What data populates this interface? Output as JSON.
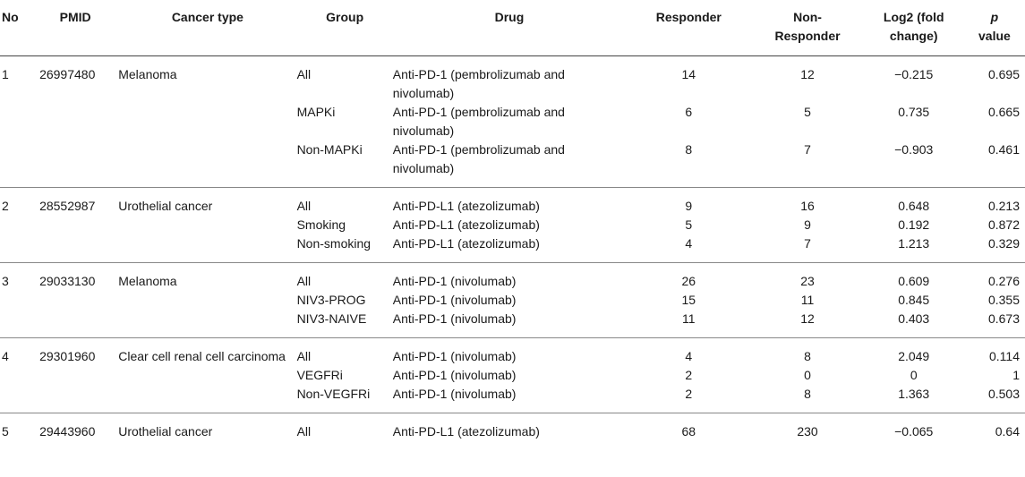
{
  "headers": {
    "no": "No",
    "pmid": "PMID",
    "cancer_type": "Cancer type",
    "group": "Group",
    "drug": "Drug",
    "responder": "Responder",
    "non_responder_1": "Non-",
    "non_responder_2": "Responder",
    "log2_1": "Log2 (fold",
    "log2_2": "change)",
    "p_1": "p",
    "p_2": "value"
  },
  "studies": [
    {
      "no": "1",
      "pmid": "26997480",
      "cancer_type": "Melanoma",
      "rows": [
        {
          "group": "All",
          "drug": "Anti-PD-1 (pembrolizumab and nivolumab)",
          "responder": "14",
          "non_responder": "12",
          "log2": "−0.215",
          "p": "0.695"
        },
        {
          "group": "MAPKi",
          "drug": "Anti-PD-1 (pembrolizumab and nivolumab)",
          "responder": "6",
          "non_responder": "5",
          "log2": "0.735",
          "p": "0.665"
        },
        {
          "group": "Non-MAPKi",
          "drug": "Anti-PD-1 (pembrolizumab and nivolumab)",
          "responder": "8",
          "non_responder": "7",
          "log2": "−0.903",
          "p": "0.461"
        }
      ]
    },
    {
      "no": "2",
      "pmid": "28552987",
      "cancer_type": "Urothelial cancer",
      "rows": [
        {
          "group": "All",
          "drug": "Anti-PD-L1 (atezolizumab)",
          "responder": "9",
          "non_responder": "16",
          "log2": "0.648",
          "p": "0.213"
        },
        {
          "group": "Smoking",
          "drug": "Anti-PD-L1 (atezolizumab)",
          "responder": "5",
          "non_responder": "9",
          "log2": "0.192",
          "p": "0.872"
        },
        {
          "group": "Non-smoking",
          "drug": "Anti-PD-L1 (atezolizumab)",
          "responder": "4",
          "non_responder": "7",
          "log2": "1.213",
          "p": "0.329"
        }
      ]
    },
    {
      "no": "3",
      "pmid": "29033130",
      "cancer_type": "Melanoma",
      "rows": [
        {
          "group": "All",
          "drug": "Anti-PD-1 (nivolumab)",
          "responder": "26",
          "non_responder": "23",
          "log2": "0.609",
          "p": "0.276"
        },
        {
          "group": "NIV3-PROG",
          "drug": "Anti-PD-1 (nivolumab)",
          "responder": "15",
          "non_responder": "11",
          "log2": "0.845",
          "p": "0.355"
        },
        {
          "group": "NIV3-NAIVE",
          "drug": "Anti-PD-1 (nivolumab)",
          "responder": "11",
          "non_responder": "12",
          "log2": "0.403",
          "p": "0.673"
        }
      ]
    },
    {
      "no": "4",
      "pmid": "29301960",
      "cancer_type": "Clear cell renal cell carcinoma",
      "rows": [
        {
          "group": "All",
          "drug": "Anti-PD-1 (nivolumab)",
          "responder": "4",
          "non_responder": "8",
          "log2": "2.049",
          "p": "0.114"
        },
        {
          "group": "VEGFRi",
          "drug": "Anti-PD-1 (nivolumab)",
          "responder": "2",
          "non_responder": "0",
          "log2": "0",
          "p": "1"
        },
        {
          "group": "Non-VEGFRi",
          "drug": "Anti-PD-1 (nivolumab)",
          "responder": "2",
          "non_responder": "8",
          "log2": "1.363",
          "p": "0.503"
        }
      ]
    },
    {
      "no": "5",
      "pmid": "29443960",
      "cancer_type": "Urothelial cancer",
      "rows": [
        {
          "group": "All",
          "drug": "Anti-PD-L1 (atezolizumab)",
          "responder": "68",
          "non_responder": "230",
          "log2": "−0.065",
          "p": "0.64"
        }
      ]
    }
  ]
}
